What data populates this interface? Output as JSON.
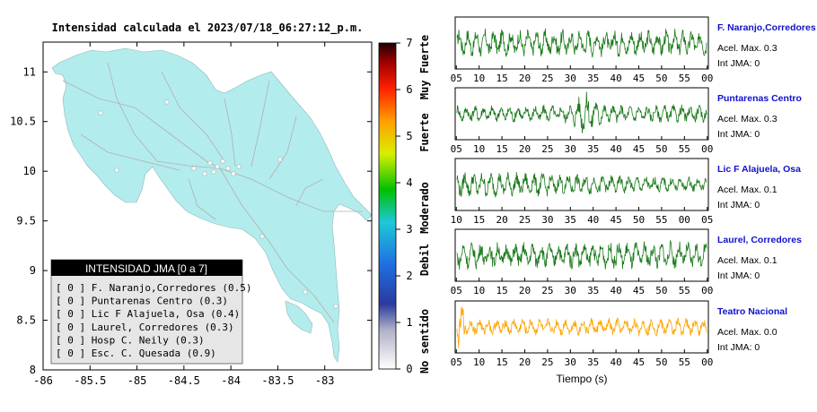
{
  "map": {
    "title": "Intensidad calculada el 2023/07/18_06:27:12_p.m.",
    "x_ticks": [
      "-86",
      "-85.5",
      "-85",
      "-84.5",
      "-84",
      "-83.5",
      "-83"
    ],
    "y_ticks": [
      "11",
      "10.5",
      "10",
      "9.5",
      "9",
      "8.5",
      "8"
    ],
    "xlim": [
      -86,
      -82.5
    ],
    "ylim": [
      8,
      11.3
    ],
    "colors": {
      "land": "#b3ecec",
      "sea": "#ffffff",
      "roads": "#b0b0b0"
    }
  },
  "legend": {
    "title": "INTENSIDAD JMA [0 a 7]",
    "items": [
      {
        "label": "[ 0 ]  F. Naranjo,Corredores (0.5)"
      },
      {
        "label": "[ 0 ]  Puntarenas Centro (0.3)"
      },
      {
        "label": "[ 0 ]  Lic F Alajuela, Osa (0.4)"
      },
      {
        "label": "[ 0 ]  Laurel, Corredores (0.3)"
      },
      {
        "label": "[ 0 ]  Hosp C. Neily (0.3)"
      },
      {
        "label": "[ 0 ]  Esc. C. Quesada (0.9)"
      }
    ]
  },
  "colorbar": {
    "ticks": [
      "0",
      "1",
      "2",
      "3",
      "4",
      "5",
      "6",
      "7"
    ],
    "categories": [
      "No sentido",
      "Debil",
      "Moderado",
      "Fuerte",
      "Muy Fuerte"
    ],
    "range": [
      0,
      7
    ]
  },
  "chart_data": [
    {
      "type": "line",
      "station": "F. Naranjo,Corredores",
      "accel_label": "Acel. Max. 0.3",
      "int_label": "Int JMA: 0",
      "x_ticks": [
        "05",
        "10",
        "15",
        "20",
        "25",
        "30",
        "35",
        "40",
        "45",
        "50",
        "55",
        "00"
      ],
      "color": "#1a7a1a",
      "ylim": [
        -1,
        1
      ]
    },
    {
      "type": "line",
      "station": "Puntarenas Centro",
      "accel_label": "Acel. Max. 0.3",
      "int_label": "Int JMA: 0",
      "x_ticks": [
        "05",
        "10",
        "15",
        "20",
        "25",
        "30",
        "35",
        "40",
        "45",
        "50",
        "55",
        "00"
      ],
      "color": "#1a7a1a",
      "ylim": [
        -1,
        1
      ]
    },
    {
      "type": "line",
      "station": "Lic F Alajuela, Osa",
      "accel_label": "Acel. Max. 0.1",
      "int_label": "Int JMA: 0",
      "x_ticks": [
        "10",
        "15",
        "20",
        "25",
        "30",
        "35",
        "40",
        "45",
        "50",
        "55",
        "00",
        "05"
      ],
      "color": "#1a7a1a",
      "ylim": [
        -1,
        1
      ]
    },
    {
      "type": "line",
      "station": "Laurel, Corredores",
      "accel_label": "Acel. Max. 0.1",
      "int_label": "Int JMA: 0",
      "x_ticks": [
        "05",
        "10",
        "15",
        "20",
        "25",
        "30",
        "35",
        "40",
        "45",
        "50",
        "55",
        "00"
      ],
      "color": "#1a7a1a",
      "ylim": [
        -1,
        1
      ]
    },
    {
      "type": "line",
      "station": "Teatro Nacional",
      "accel_label": "Acel. Max. 0.0",
      "int_label": "Int JMA: 0",
      "x_ticks": [
        "05",
        "10",
        "15",
        "20",
        "25",
        "30",
        "35",
        "40",
        "45",
        "50",
        "55",
        "00"
      ],
      "color": "#ffa500",
      "ylim": [
        -1,
        1
      ]
    }
  ],
  "xlabel": "Tiempo (s)"
}
